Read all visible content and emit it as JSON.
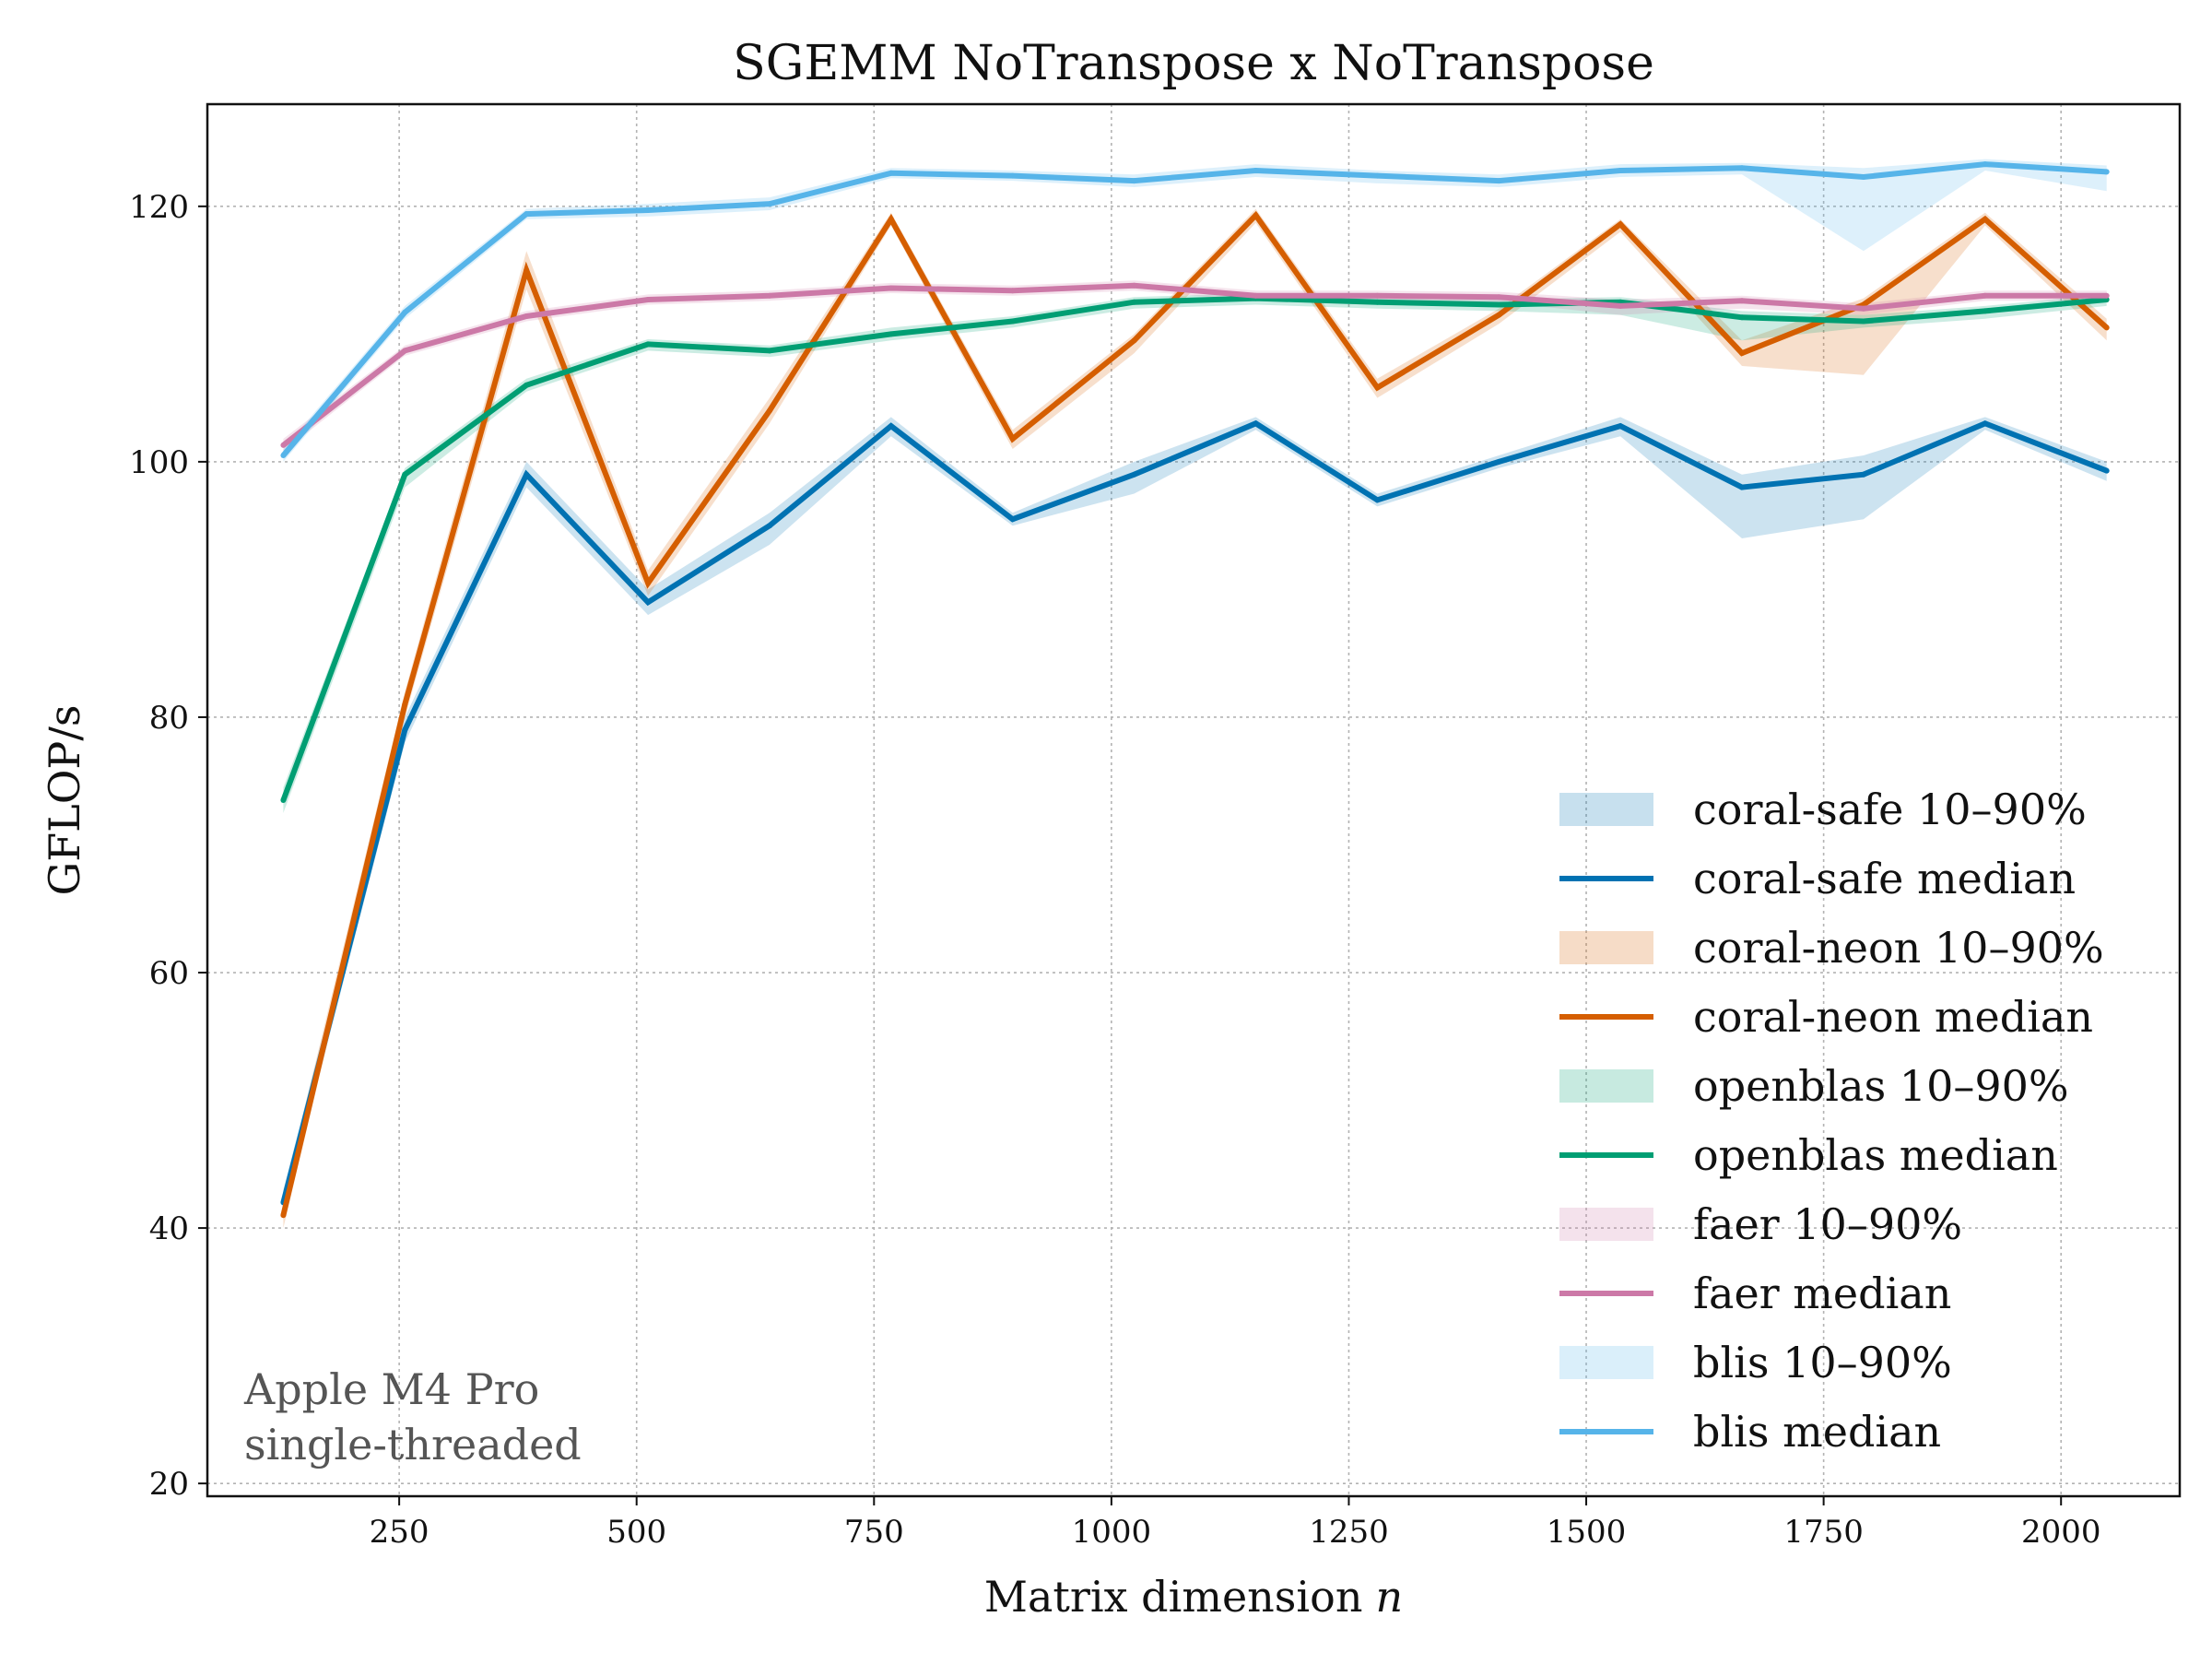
{
  "chart_data": {
    "type": "line",
    "title": "SGEMM  NoTranspose x NoTranspose",
    "xlabel": "Matrix dimension",
    "xlabel_var": "n",
    "ylabel": "GFLOP/s",
    "xlim": [
      48,
      2125
    ],
    "ylim": [
      19,
      128
    ],
    "xticks": [
      250,
      500,
      750,
      1000,
      1250,
      1500,
      1750,
      2000
    ],
    "yticks": [
      20,
      40,
      60,
      80,
      100,
      120
    ],
    "grid": true,
    "legend_position": "center-right",
    "annotation": [
      "Apple M4 Pro",
      "single-threaded"
    ],
    "x": [
      128,
      256,
      384,
      512,
      640,
      768,
      896,
      1024,
      1152,
      1280,
      1408,
      1536,
      1664,
      1792,
      1920,
      2048
    ],
    "series": [
      {
        "name": "coral-safe",
        "median_label": "coral-safe median",
        "band_label": "coral-safe 10–90%",
        "color": "#0072b2",
        "median": [
          42,
          79,
          99,
          89,
          95,
          102.8,
          95.5,
          99,
          103,
          97,
          100,
          102.8,
          98,
          99,
          103,
          99.3
        ],
        "p10": [
          41,
          78,
          98,
          88,
          93.5,
          102,
          95,
          97.5,
          102.5,
          96.5,
          99.5,
          102,
          94,
          95.5,
          102.5,
          98.5
        ],
        "p90": [
          43,
          80,
          100,
          90,
          96,
          103.5,
          96,
          100,
          103.5,
          97.5,
          100.5,
          103.5,
          99,
          100.5,
          103.5,
          100
        ]
      },
      {
        "name": "coral-neon",
        "median_label": "coral-neon median",
        "band_label": "coral-neon 10–90%",
        "color": "#d55e00",
        "median": [
          41,
          81,
          115,
          90.5,
          104,
          119,
          101.8,
          109.5,
          119.3,
          105.8,
          111.5,
          118.6,
          108.5,
          112.3,
          119,
          110.5
        ],
        "p10": [
          40,
          80,
          113.5,
          89.5,
          103,
          118.5,
          101,
          108.5,
          118.7,
          105,
          110.8,
          118,
          107.5,
          106.8,
          118.5,
          109.5
        ],
        "p90": [
          42.5,
          82,
          116.5,
          91.5,
          105,
          119.5,
          102.5,
          110,
          119.8,
          106.5,
          112,
          119,
          109.5,
          112.8,
          119.5,
          111.2
        ]
      },
      {
        "name": "openblas",
        "median_label": "openblas median",
        "band_label": "openblas 10–90%",
        "color": "#009e73",
        "median": [
          73.5,
          99,
          106,
          109.2,
          108.7,
          110,
          111,
          112.5,
          112.8,
          112.5,
          112.3,
          112.5,
          111.3,
          111,
          111.8,
          112.7
        ],
        "p10": [
          72.5,
          98,
          105.5,
          108.7,
          108.2,
          109.5,
          110.5,
          112,
          112.3,
          112,
          111.8,
          111.5,
          109.5,
          110.5,
          111.2,
          112.2
        ],
        "p90": [
          74.5,
          99.5,
          106.5,
          109.6,
          109.1,
          110.5,
          111.4,
          112.9,
          113.2,
          112.9,
          112.7,
          112.9,
          111.8,
          111.5,
          112.2,
          113.1
        ]
      },
      {
        "name": "faer",
        "median_label": "faer median",
        "band_label": "faer 10–90%",
        "color": "#cc79a7",
        "median": [
          101.3,
          108.7,
          111.4,
          112.7,
          113,
          113.6,
          113.4,
          113.8,
          113,
          113,
          112.9,
          112.2,
          112.6,
          112,
          113,
          113
        ],
        "p10": [
          100.8,
          108.3,
          111,
          112.3,
          112.6,
          113.2,
          113,
          113.4,
          112.6,
          112.6,
          112.5,
          111.5,
          112,
          111.5,
          112.6,
          112.6
        ],
        "p90": [
          101.8,
          109.1,
          111.8,
          113.1,
          113.4,
          114,
          113.8,
          114.2,
          113.4,
          113.4,
          113.3,
          112.7,
          113,
          112.4,
          113.4,
          113.4
        ]
      },
      {
        "name": "blis",
        "median_label": "blis median",
        "band_label": "blis 10–90%",
        "color": "#56b4e9",
        "median": [
          100.5,
          111.7,
          119.4,
          119.7,
          120.2,
          122.6,
          122.4,
          122,
          122.8,
          122.4,
          122,
          122.8,
          123,
          122.3,
          123.3,
          122.7
        ],
        "p10": [
          100,
          111.2,
          119,
          119.2,
          119.7,
          122.2,
          122,
          121.5,
          122.3,
          121.8,
          121.5,
          122.3,
          122.5,
          116.5,
          122.8,
          121.2
        ],
        "p90": [
          101,
          112.2,
          119.8,
          120.2,
          120.7,
          123,
          122.8,
          122.5,
          123.3,
          122.8,
          122.5,
          123.3,
          123.4,
          123,
          123.7,
          123.2
        ]
      }
    ]
  }
}
